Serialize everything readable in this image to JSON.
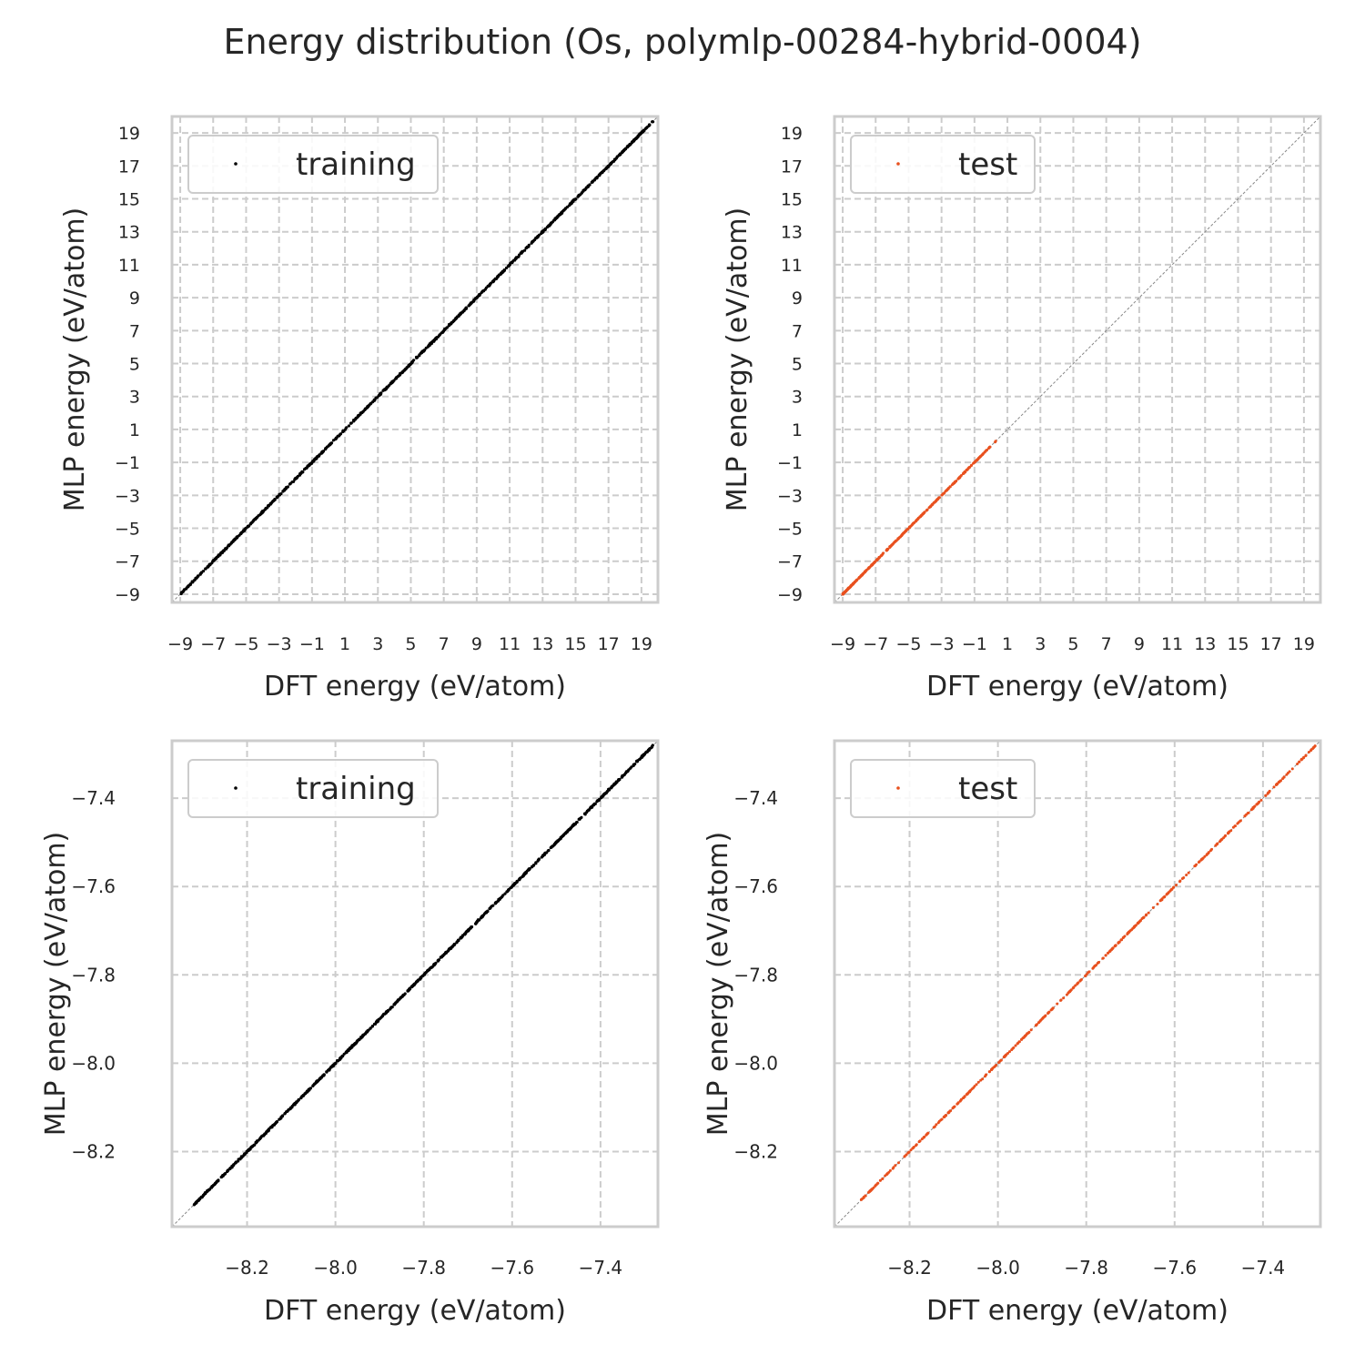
{
  "title": "Energy distribution (Os, polymlp-00284-hybrid-0004)",
  "colors": {
    "training": "#000000",
    "test": "#e8501e",
    "grid": "#cccccc",
    "frame": "#cccccc",
    "diagonal": "#888888"
  },
  "chart_data": [
    {
      "type": "scatter",
      "panel": "top-left",
      "xlabel": "DFT energy (eV/atom)",
      "ylabel": "MLP energy (eV/atom)",
      "xlim": [
        -9.5,
        20
      ],
      "ylim": [
        -9.5,
        20
      ],
      "xticks": [
        -9,
        -7,
        -5,
        -3,
        -1,
        1,
        3,
        5,
        7,
        9,
        11,
        13,
        15,
        17,
        19
      ],
      "yticks": [
        -9,
        -7,
        -5,
        -3,
        -1,
        1,
        3,
        5,
        7,
        9,
        11,
        13,
        15,
        17,
        19
      ],
      "tick_labels": [
        "−9",
        "−7",
        "−5",
        "−3",
        "−1",
        "1",
        "3",
        "5",
        "7",
        "9",
        "11",
        "13",
        "15",
        "17",
        "19"
      ],
      "grid": true,
      "legend": "upper-left",
      "series": [
        {
          "name": "training",
          "color": "#000000",
          "x_range": [
            -9.0,
            19.8
          ],
          "relation": "y≈x"
        }
      ]
    },
    {
      "type": "scatter",
      "panel": "top-right",
      "xlabel": "DFT energy (eV/atom)",
      "ylabel": "MLP energy (eV/atom)",
      "xlim": [
        -9.5,
        20
      ],
      "ylim": [
        -9.5,
        20
      ],
      "xticks": [
        -9,
        -7,
        -5,
        -3,
        -1,
        1,
        3,
        5,
        7,
        9,
        11,
        13,
        15,
        17,
        19
      ],
      "yticks": [
        -9,
        -7,
        -5,
        -3,
        -1,
        1,
        3,
        5,
        7,
        9,
        11,
        13,
        15,
        17,
        19
      ],
      "tick_labels": [
        "−9",
        "−7",
        "−5",
        "−3",
        "−1",
        "1",
        "3",
        "5",
        "7",
        "9",
        "11",
        "13",
        "15",
        "17",
        "19"
      ],
      "grid": true,
      "legend": "upper-left",
      "series": [
        {
          "name": "test",
          "color": "#e8501e",
          "x_range": [
            -9.0,
            0.3
          ],
          "relation": "y≈x"
        }
      ]
    },
    {
      "type": "scatter",
      "panel": "bottom-left",
      "xlabel": "DFT energy (eV/atom)",
      "ylabel": "MLP energy (eV/atom)",
      "xlim": [
        -8.37,
        -7.27
      ],
      "ylim": [
        -8.37,
        -7.27
      ],
      "xticks": [
        -8.2,
        -8.0,
        -7.8,
        -7.6,
        -7.4
      ],
      "yticks": [
        -8.2,
        -8.0,
        -7.8,
        -7.6,
        -7.4
      ],
      "tick_labels": [
        "−8.2",
        "−8.0",
        "−7.8",
        "−7.6",
        "−7.4"
      ],
      "grid": true,
      "legend": "upper-left",
      "series": [
        {
          "name": "training",
          "color": "#000000",
          "x_range": [
            -8.32,
            -7.28
          ],
          "relation": "y≈x"
        }
      ]
    },
    {
      "type": "scatter",
      "panel": "bottom-right",
      "xlabel": "DFT energy (eV/atom)",
      "ylabel": "MLP energy (eV/atom)",
      "xlim": [
        -8.37,
        -7.27
      ],
      "ylim": [
        -8.37,
        -7.27
      ],
      "xticks": [
        -8.2,
        -8.0,
        -7.8,
        -7.6,
        -7.4
      ],
      "yticks": [
        -8.2,
        -8.0,
        -7.8,
        -7.6,
        -7.4
      ],
      "tick_labels": [
        "−8.2",
        "−8.0",
        "−7.8",
        "−7.6",
        "−7.4"
      ],
      "grid": true,
      "legend": "upper-left",
      "series": [
        {
          "name": "test",
          "color": "#e8501e",
          "x_range": [
            -8.31,
            -7.28
          ],
          "relation": "y≈x"
        }
      ]
    }
  ]
}
